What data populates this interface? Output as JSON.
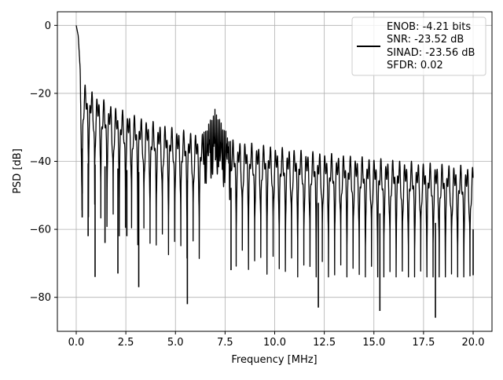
{
  "chart_data": {
    "type": "line",
    "title": "",
    "xlabel": "Frequency [MHz]",
    "ylabel": "PSD [dB]",
    "xlim": [
      -0.95,
      20.95
    ],
    "ylim": [
      -90,
      4
    ],
    "xticks": [
      0.0,
      2.5,
      5.0,
      7.5,
      10.0,
      12.5,
      15.0,
      17.5,
      20.0
    ],
    "xtick_labels": [
      "0.0",
      "2.5",
      "5.0",
      "7.5",
      "10.0",
      "12.5",
      "15.0",
      "17.5",
      "20.0"
    ],
    "yticks": [
      0,
      -20,
      -40,
      -60,
      -80
    ],
    "ytick_labels": [
      "0",
      "−20",
      "−40",
      "−60",
      "−80"
    ],
    "grid": true,
    "legend_position": "top-right",
    "legend_lines": [
      "ENOB: -4.21 bits",
      "SNR: -23.52 dB",
      "SINAD: -23.56 dB",
      "SFDR: 0.02"
    ],
    "series": [
      {
        "color": "#000000",
        "x": [
          0.0,
          0.1,
          0.2,
          0.3,
          0.35,
          0.45,
          0.55,
          0.6,
          0.7,
          0.85,
          0.95,
          1.1,
          1.3,
          1.45,
          1.6,
          1.75,
          2.0,
          2.1,
          2.25,
          2.5,
          2.55,
          2.8,
          3.0,
          3.15,
          3.5,
          4.0,
          4.5,
          5.0,
          5.5,
          5.6,
          6.0,
          6.5,
          6.8,
          7.0,
          7.1,
          7.3,
          7.6,
          7.8,
          8.5,
          9.0,
          10.0,
          11.0,
          12.0,
          12.2,
          13.0,
          14.0,
          15.0,
          15.3,
          16.0,
          17.0,
          18.0,
          18.1,
          18.5,
          19.0,
          19.5,
          20.0
        ],
        "y": [
          0.0,
          -3.0,
          -13.0,
          -56.5,
          -18.0,
          -14.0,
          -20.0,
          -62.0,
          -18.0,
          -22.0,
          -74.0,
          -21.0,
          -25.0,
          -64.0,
          -24.0,
          -28.0,
          -27.5,
          -73.0,
          -28.0,
          -30.0,
          -62.0,
          -31.0,
          -32.0,
          -77.0,
          -34.0,
          -35.0,
          -36.0,
          -36.0,
          -37.0,
          -82.0,
          -36.0,
          -34.0,
          -27.0,
          -24.5,
          -32.0,
          -28.0,
          -33.0,
          -72.0,
          -37.0,
          -38.0,
          -39.0,
          -39.5,
          -40.0,
          -83.0,
          -40.0,
          -40.5,
          -41.0,
          -84.0,
          -41.0,
          -41.0,
          -41.5,
          -86.0,
          -41.0,
          -41.0,
          -42.0,
          -73.5
        ]
      }
    ]
  }
}
